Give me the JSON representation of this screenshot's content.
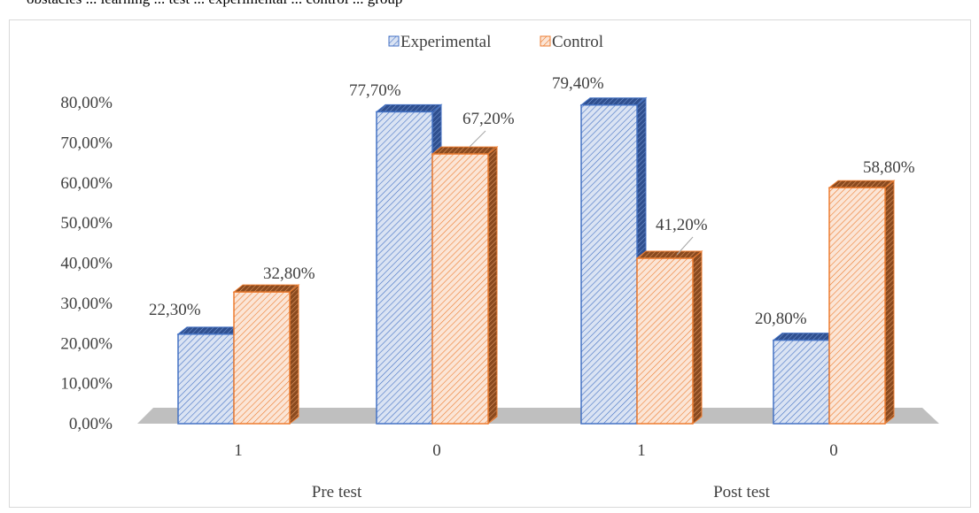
{
  "header_fragment": "obstacles ... learning ... test ... experimental ... control ... group",
  "chart_data": {
    "type": "bar",
    "title": "",
    "xlabel": "",
    "ylabel": "",
    "groups": [
      "Pre test",
      "Post test"
    ],
    "categories": [
      "1",
      "0",
      "1",
      "0"
    ],
    "category_groups": [
      0,
      0,
      1,
      1
    ],
    "series": [
      {
        "name": "Experimental",
        "values": [
          22.3,
          77.7,
          79.4,
          20.8
        ],
        "labels": [
          "22,30%",
          "77,70%",
          "79,40%",
          "20,80%"
        ],
        "color": "#4472c4"
      },
      {
        "name": "Control",
        "values": [
          32.8,
          67.2,
          41.2,
          58.8
        ],
        "labels": [
          "32,80%",
          "67,20%",
          "41,20%",
          "58,80%"
        ],
        "color": "#ed7d31"
      }
    ],
    "ylim": [
      0,
      80
    ],
    "yticks": [
      0,
      10,
      20,
      30,
      40,
      50,
      60,
      70,
      80
    ],
    "ytick_labels": [
      "0,00%",
      "10,00%",
      "20,00%",
      "30,00%",
      "40,00%",
      "50,00%",
      "60,00%",
      "70,00%",
      "80,00%"
    ],
    "legend_position": "top-center",
    "grid": false,
    "style": "3d-hatched"
  }
}
